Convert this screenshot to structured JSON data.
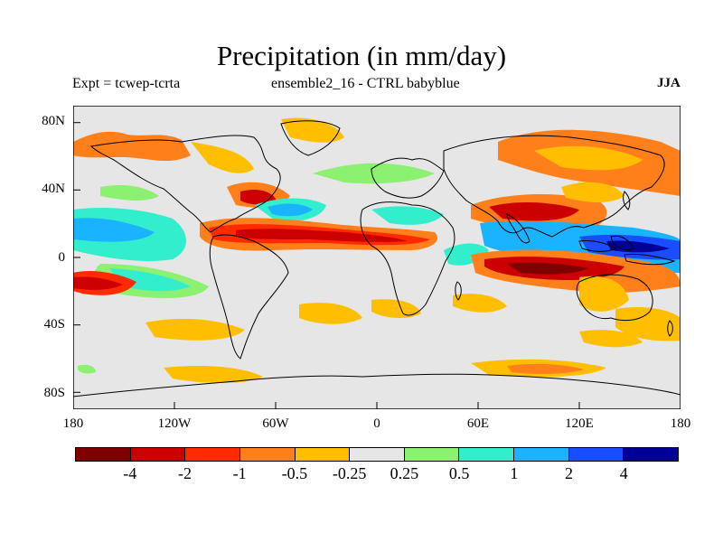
{
  "title": "Precipitation (in mm/day)",
  "subtitle_left": "Expt = tcwep-tcrta",
  "subtitle_center": "ensemble2_16 - CTRL babyblue",
  "subtitle_right": "JJA",
  "lat_labels": [
    "80N",
    "40N",
    "0",
    "40S",
    "80S"
  ],
  "lon_labels": [
    "180",
    "120W",
    "60W",
    "0",
    "60E",
    "120E",
    "180"
  ],
  "colorbar": {
    "colors": [
      "#7f0000",
      "#cc0000",
      "#ff2a00",
      "#ff7f1a",
      "#ffbf00",
      "#e6e6e6",
      "#8cf070",
      "#33eecc",
      "#1ab3ff",
      "#1a4dff",
      "#000099"
    ],
    "labels": [
      "-4",
      "-2",
      "-1",
      "-0.5",
      "-0.25",
      "0.25",
      "0.5",
      "1",
      "2",
      "4"
    ]
  },
  "map": {
    "background": "#e6e6e6",
    "coastline_color": "#000000"
  }
}
